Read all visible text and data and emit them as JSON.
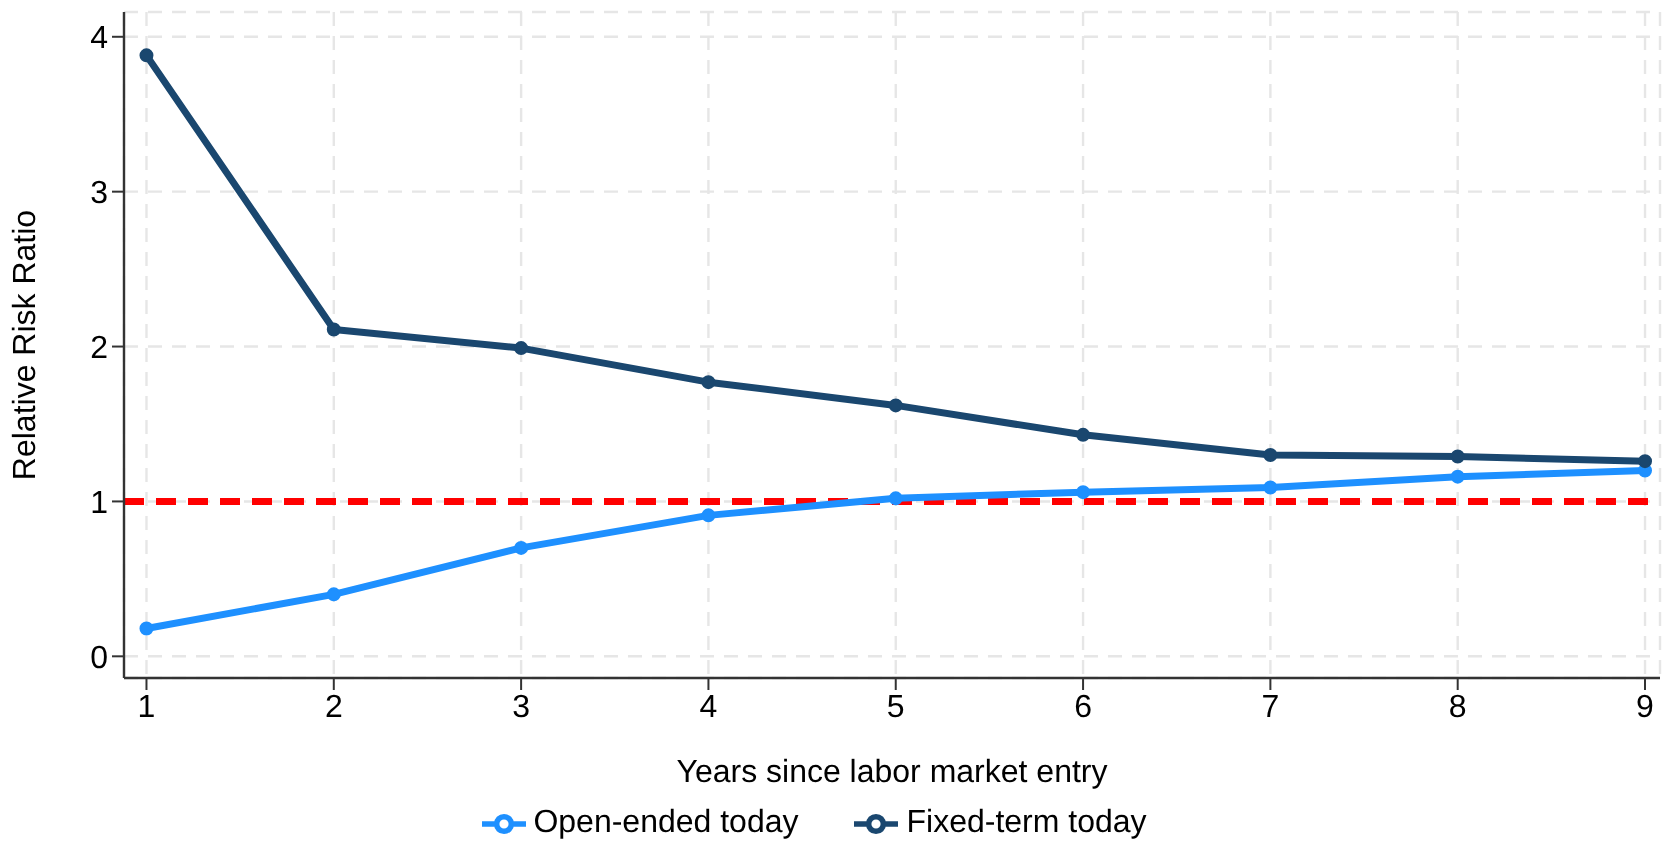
{
  "chart_data": {
    "type": "line",
    "xlabel": "Years since labor market entry",
    "ylabel": "Relative Risk Ratio",
    "x": [
      1,
      2,
      3,
      4,
      5,
      6,
      7,
      8,
      9
    ],
    "xlim": [
      0.88,
      9.08
    ],
    "xticks": [
      1,
      2,
      3,
      4,
      5,
      6,
      7,
      8,
      9
    ],
    "ylim": [
      -0.14,
      4.16
    ],
    "yticks": [
      0,
      1,
      2,
      3,
      4
    ],
    "series": [
      {
        "name": "Open-ended today",
        "color": "#1e90ff",
        "values": [
          0.18,
          0.4,
          0.7,
          0.91,
          1.02,
          1.06,
          1.09,
          1.16,
          1.2
        ]
      },
      {
        "name": "Fixed-term today",
        "color": "#1a476f",
        "values": [
          3.88,
          2.11,
          1.99,
          1.77,
          1.62,
          1.43,
          1.3,
          1.29,
          1.26
        ]
      }
    ],
    "ref_lines": [
      {
        "axis": "y",
        "value": 1,
        "color": "#ff0000",
        "line_style": "dashed"
      }
    ],
    "grid": true,
    "legend": "bottom",
    "marker": "circle",
    "line_style": "solid"
  }
}
